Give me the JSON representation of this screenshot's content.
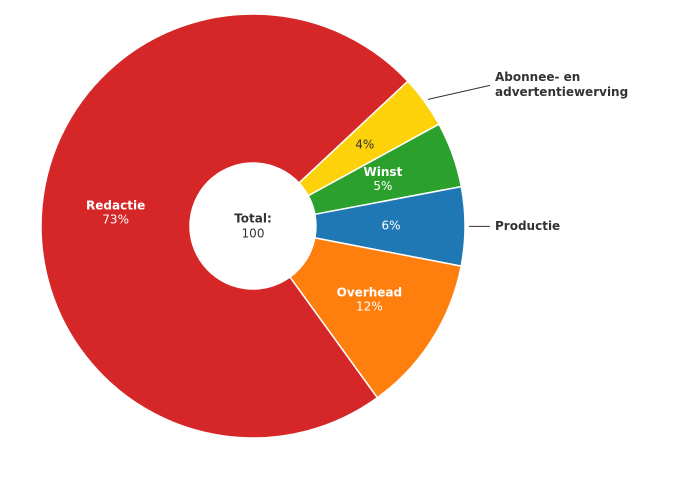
{
  "chart_data": {
    "type": "donut",
    "categories": [
      "Abonnee- en advertentiewerving",
      "Winst",
      "Productie",
      "Overhead",
      "Redactie"
    ],
    "values": [
      4,
      5,
      6,
      12,
      73
    ],
    "value_labels": [
      "4%",
      "5%",
      "6%",
      "12%",
      "73%"
    ],
    "colors": [
      "#fdd20a",
      "#2ca02c",
      "#1f77b4",
      "#ff7f0e",
      "#d62728"
    ],
    "total_label": "Total:",
    "total": 100
  }
}
